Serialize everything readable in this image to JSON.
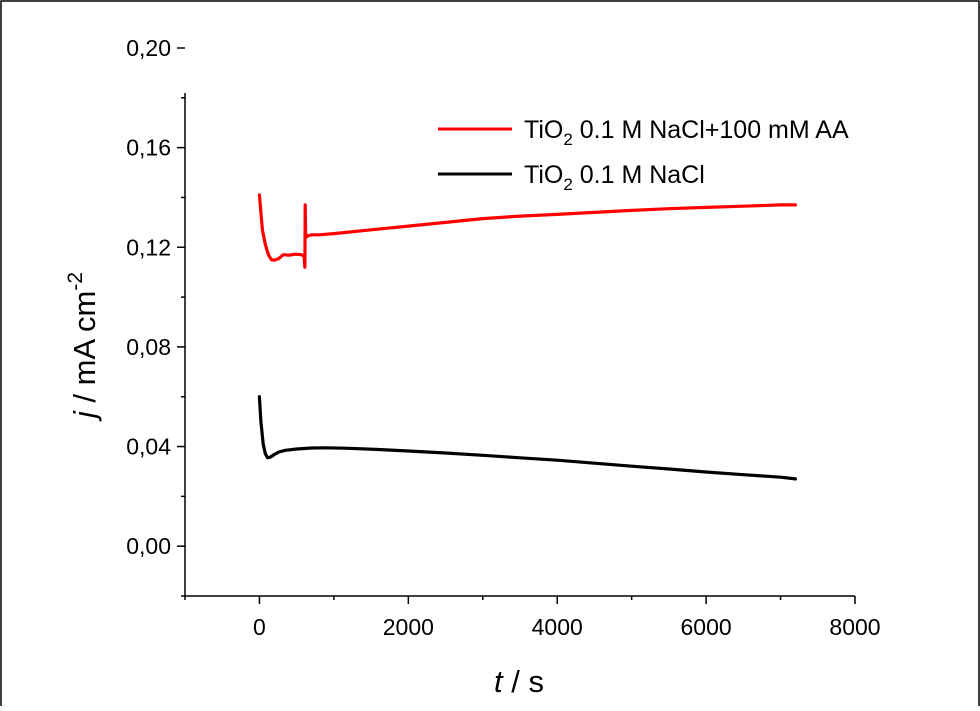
{
  "chart_data": {
    "type": "line",
    "xlabel_italic": "t",
    "xlabel_rest": " / s",
    "ylabel_italic": "j",
    "ylabel_rest": " / mA cm",
    "ylabel_sup": "-2",
    "xlim": [
      -1000,
      8000
    ],
    "ylim": [
      -0.02,
      0.2
    ],
    "xticks": [
      0,
      2000,
      4000,
      6000,
      8000
    ],
    "xtick_labels": [
      "0",
      "2000",
      "4000",
      "6000",
      "8000"
    ],
    "yticks": [
      0.0,
      0.04,
      0.08,
      0.12,
      0.16,
      0.2
    ],
    "ytick_labels": [
      "0,00",
      "0,04",
      "0,08",
      "0,12",
      "0,16",
      "0,20"
    ],
    "legend_position": "top-right",
    "series": [
      {
        "name_main": "TiO",
        "name_sub": "2",
        "name_rest": " 0.1 M NaCl+100 mM AA",
        "color": "#ff0000",
        "x": [
          0,
          40,
          80,
          120,
          160,
          200,
          260,
          320,
          400,
          480,
          560,
          600,
          610,
          615,
          620,
          625,
          640,
          700,
          800,
          1000,
          1500,
          2000,
          2500,
          3000,
          3500,
          4000,
          4500,
          5000,
          5500,
          6000,
          6500,
          7000,
          7200
        ],
        "y": [
          0.141,
          0.127,
          0.121,
          0.117,
          0.115,
          0.1148,
          0.1155,
          0.117,
          0.1168,
          0.1172,
          0.117,
          0.1165,
          0.112,
          0.137,
          0.126,
          0.124,
          0.1245,
          0.125,
          0.125,
          0.1255,
          0.127,
          0.1285,
          0.13,
          0.1315,
          0.1325,
          0.1332,
          0.134,
          0.1348,
          0.1355,
          0.136,
          0.1365,
          0.137,
          0.137
        ]
      },
      {
        "name_main": "TiO",
        "name_sub": "2",
        "name_rest": " 0.1 M NaCl",
        "color": "#000000",
        "x": [
          0,
          20,
          50,
          80,
          110,
          150,
          200,
          260,
          350,
          500,
          700,
          900,
          1200,
          1600,
          2000,
          2500,
          3000,
          3500,
          4000,
          4500,
          5000,
          5500,
          6000,
          6500,
          7000,
          7200
        ],
        "y": [
          0.06,
          0.05,
          0.041,
          0.037,
          0.0355,
          0.0358,
          0.0368,
          0.0378,
          0.0385,
          0.039,
          0.0394,
          0.0395,
          0.0393,
          0.0388,
          0.0382,
          0.0374,
          0.0365,
          0.0355,
          0.0345,
          0.0333,
          0.0321,
          0.031,
          0.0298,
          0.0287,
          0.0277,
          0.027
        ]
      }
    ]
  }
}
